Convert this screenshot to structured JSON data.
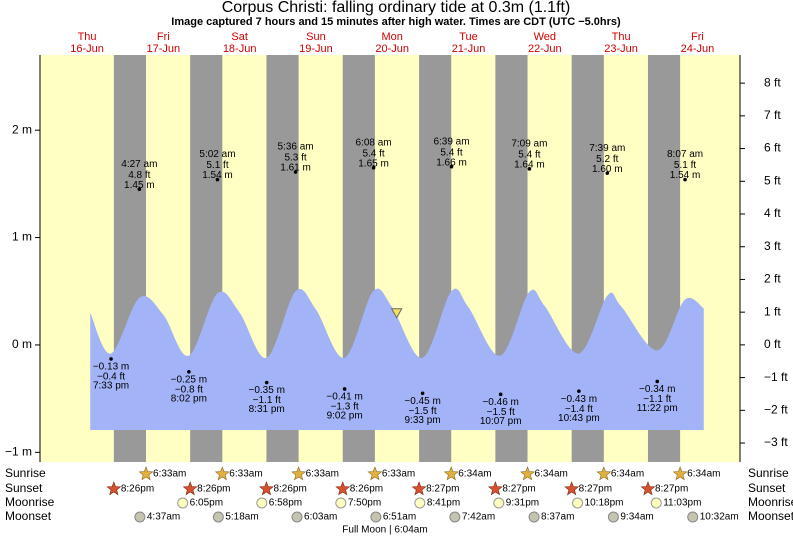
{
  "chart_data": {
    "type": "area",
    "title": "Corpus Christi: falling  ordinary tide at 0.3m (1.1ft)",
    "subtitle": "Image captured 7 hours and 15 minutes after high water. Times are CDT (UTC −5.0hrs)",
    "xlim": [
      -2.8,
      217.4
    ],
    "ylim": [
      -1.09,
      2.7
    ],
    "yticks": [
      {
        "value": 2,
        "label": "2 m"
      },
      {
        "value": 1,
        "label": "1 m"
      },
      {
        "value": 0,
        "label": "0 m"
      },
      {
        "value": -1,
        "label": "−1 m"
      }
    ],
    "y2lim": [
      -3.58,
      8.86
    ],
    "y2ticks": [
      {
        "value": 8,
        "label": "8 ft"
      },
      {
        "value": 7,
        "label": "7 ft"
      },
      {
        "value": 6,
        "label": "6 ft"
      },
      {
        "value": 5,
        "label": "5 ft"
      },
      {
        "value": 4,
        "label": "4 ft"
      },
      {
        "value": 3,
        "label": "3 ft"
      },
      {
        "value": 2,
        "label": "2 ft"
      },
      {
        "value": 1,
        "label": "1 ft"
      },
      {
        "value": 0,
        "label": "0 ft"
      },
      {
        "value": -1,
        "label": "−1 ft"
      },
      {
        "value": -2,
        "label": "−2 ft"
      },
      {
        "value": -3,
        "label": "−3 ft"
      }
    ],
    "curve": {
      "color": "#a3b3f7",
      "x": [
        13,
        19.5,
        28.5,
        36,
        44,
        53,
        60,
        68.5,
        77.6,
        84,
        93,
        102,
        108,
        117.5,
        126.6,
        132,
        142,
        151,
        156,
        166.7,
        175.7,
        180,
        191.4,
        200,
        206
      ],
      "values": [
        0.3,
        -0.08,
        0.44,
        0.28,
        -0.1,
        0.48,
        0.3,
        -0.12,
        0.5,
        0.33,
        -0.12,
        0.5,
        0.35,
        -0.12,
        0.5,
        0.35,
        -0.1,
        0.49,
        0.36,
        -0.08,
        0.46,
        0.36,
        -0.05,
        0.42,
        0.34
      ]
    },
    "now": {
      "x": 109.4,
      "value": 0.3,
      "color": "#f0e060"
    },
    "rows": [
      "Sunrise",
      "Sunset",
      "Moonrise",
      "Moonset"
    ],
    "moon_phase": "Full Moon | 6:04am",
    "days": [
      {
        "weekday": "Thu",
        "date": "16-Jun",
        "sunset": "8:26pm",
        "low": {
          "time": "7:33 pm",
          "m": -0.13,
          "m_label": "−0.13 m",
          "ft": -0.4,
          "ft_label": "−0.4 ft"
        }
      },
      {
        "weekday": "Fri",
        "date": "17-Jun",
        "sunrise": "6:33am",
        "sunset": "8:26pm",
        "moonrise": "6:05pm",
        "moonset": "4:37am",
        "high": {
          "time": "4:27 am",
          "m": 1.45,
          "m_label": "1.45 m",
          "ft": 4.8,
          "ft_label": "4.8 ft"
        },
        "low": {
          "time": "8:02 pm",
          "m": -0.25,
          "m_label": "−0.25 m",
          "ft": -0.8,
          "ft_label": "−0.8 ft"
        }
      },
      {
        "weekday": "Sat",
        "date": "18-Jun",
        "sunrise": "6:33am",
        "sunset": "8:26pm",
        "moonrise": "6:58pm",
        "moonset": "5:18am",
        "high": {
          "time": "5:02 am",
          "m": 1.54,
          "m_label": "1.54 m",
          "ft": 5.1,
          "ft_label": "5.1 ft"
        },
        "low": {
          "time": "8:31 pm",
          "m": -0.35,
          "m_label": "−0.35 m",
          "ft": -1.1,
          "ft_label": "−1.1 ft"
        }
      },
      {
        "weekday": "Sun",
        "date": "19-Jun",
        "sunrise": "6:33am",
        "sunset": "8:26pm",
        "moonrise": "7:50pm",
        "moonset": "6:03am",
        "high": {
          "time": "5:36 am",
          "m": 1.61,
          "m_label": "1.61 m",
          "ft": 5.3,
          "ft_label": "5.3 ft"
        },
        "low": {
          "time": "9:02 pm",
          "m": -0.41,
          "m_label": "−0.41 m",
          "ft": -1.3,
          "ft_label": "−1.3 ft"
        }
      },
      {
        "weekday": "Mon",
        "date": "20-Jun",
        "sunrise": "6:33am",
        "sunset": "8:27pm",
        "moonrise": "8:41pm",
        "moonset": "6:51am",
        "high": {
          "time": "6:08 am",
          "m": 1.65,
          "m_label": "1.65 m",
          "ft": 5.4,
          "ft_label": "5.4 ft"
        },
        "low": {
          "time": "9:33 pm",
          "m": -0.45,
          "m_label": "−0.45 m",
          "ft": -1.5,
          "ft_label": "−1.5 ft"
        }
      },
      {
        "weekday": "Tue",
        "date": "21-Jun",
        "sunrise": "6:34am",
        "sunset": "8:27pm",
        "moonrise": "9:31pm",
        "moonset": "7:42am",
        "high": {
          "time": "6:39 am",
          "m": 1.66,
          "m_label": "1.66 m",
          "ft": 5.4,
          "ft_label": "5.4 ft"
        },
        "low": {
          "time": "10:07 pm",
          "m": -0.46,
          "m_label": "−0.46 m",
          "ft": -1.5,
          "ft_label": "−1.5 ft"
        }
      },
      {
        "weekday": "Wed",
        "date": "22-Jun",
        "sunrise": "6:34am",
        "sunset": "8:27pm",
        "moonrise": "10:18pm",
        "moonset": "8:37am",
        "high": {
          "time": "7:09 am",
          "m": 1.64,
          "m_label": "1.64 m",
          "ft": 5.4,
          "ft_label": "5.4 ft"
        },
        "low": {
          "time": "10:43 pm",
          "m": -0.43,
          "m_label": "−0.43 m",
          "ft": -1.4,
          "ft_label": "−1.4 ft"
        }
      },
      {
        "weekday": "Thu",
        "date": "23-Jun",
        "sunrise": "6:34am",
        "sunset": "8:27pm",
        "moonrise": "11:03pm",
        "moonset": "9:34am",
        "high": {
          "time": "7:39 am",
          "m": 1.6,
          "m_label": "1.60 m",
          "ft": 5.2,
          "ft_label": "5.2 ft"
        },
        "low": {
          "time": "11:22 pm",
          "m": -0.34,
          "m_label": "−0.34 m",
          "ft": -1.1,
          "ft_label": "−1.1 ft"
        }
      },
      {
        "weekday": "Fri",
        "date": "24-Jun",
        "sunrise": "6:34am",
        "moonset": "10:32am",
        "high": {
          "time": "8:07 am",
          "m": 1.54,
          "m_label": "1.54 m",
          "ft": 5.1,
          "ft_label": "5.1 ft"
        }
      }
    ]
  }
}
